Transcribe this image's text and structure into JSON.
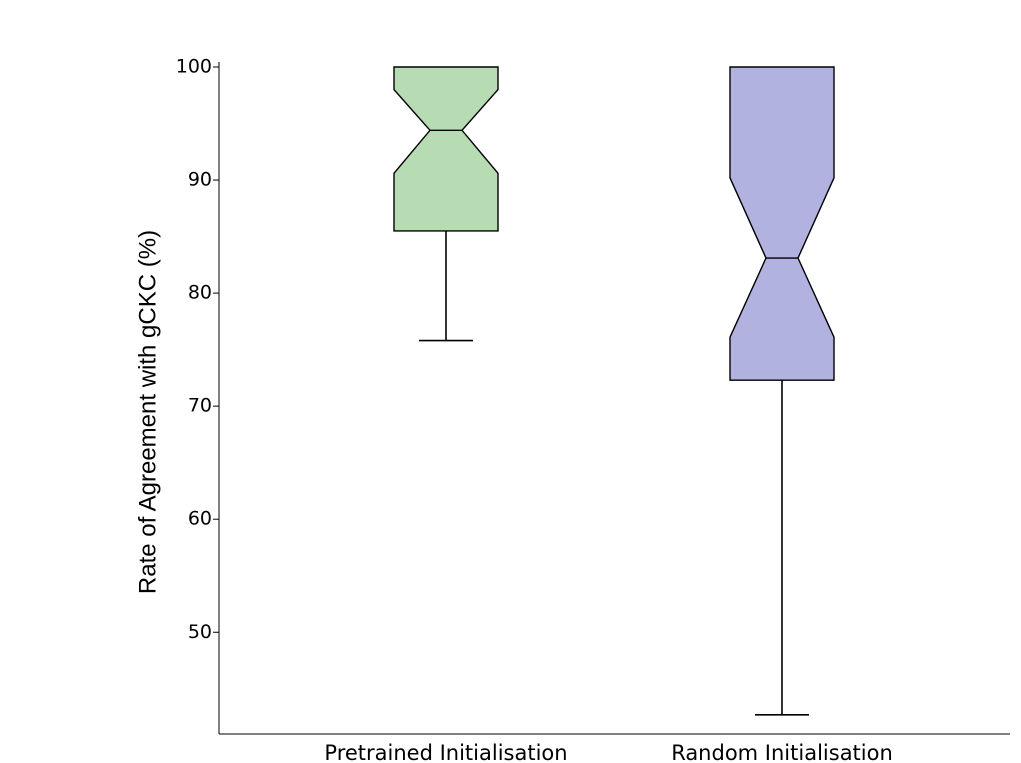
{
  "chart_data": {
    "type": "boxplot",
    "notched": true,
    "xlabel": "",
    "ylabel": "Rate of Agreement with gCKC (%)",
    "ylim": [
      41,
      100
    ],
    "yticks": [
      50,
      60,
      70,
      80,
      90,
      100
    ],
    "categories": [
      "Pretrained Initialisation",
      "Random Initialisation"
    ],
    "boxes": [
      {
        "category": "Pretrained Initialisation",
        "whisker_low": 75.8,
        "q1": 85.5,
        "median": 94.4,
        "q3": 100,
        "whisker_high": 100,
        "notch_low": 90.6,
        "notch_high": 98.0,
        "color": "#b7dcb4"
      },
      {
        "category": "Random Initialisation",
        "whisker_low": 42.7,
        "q1": 72.3,
        "median": 83.1,
        "q3": 100,
        "whisker_high": 100,
        "notch_low": 76.1,
        "notch_high": 90.2,
        "color": "#b1b2e0"
      }
    ],
    "grid": false
  }
}
